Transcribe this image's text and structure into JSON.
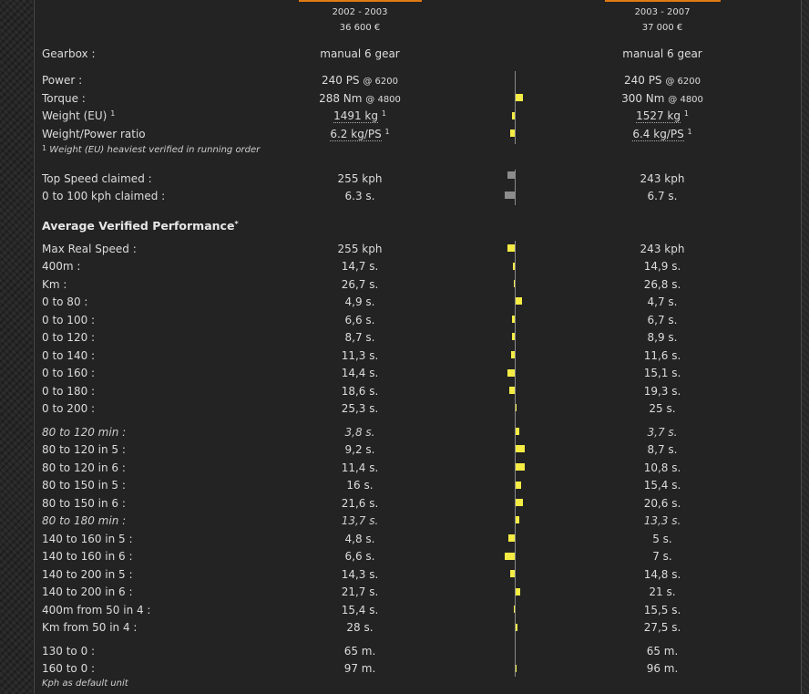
{
  "header": {
    "car1": {
      "years": "2002 - 2003",
      "price": "36 600 €"
    },
    "car2": {
      "years": "2003 - 2007",
      "price": "37 000 €"
    }
  },
  "colors": {
    "accent": "#e07a12",
    "bar_positive": "#f5ec45",
    "bar_neutral": "#8c8c8c"
  },
  "specs": {
    "gearbox": {
      "label": "Gearbox :",
      "car1": "manual 6 gear",
      "car2": "manual 6 gear"
    },
    "power": {
      "label": "Power :",
      "car1": "240 PS",
      "car1_rpm": "@ 6200",
      "car2": "240 PS",
      "car2_rpm": "@ 6200"
    },
    "torque": {
      "label": "Torque :",
      "car1": "288 Nm",
      "car1_rpm": "@ 4800",
      "car2": "300 Nm",
      "car2_rpm": "@ 4800"
    },
    "weight": {
      "label": "Weight (EU)",
      "note_mark": "1",
      "car1": "1491 kg",
      "car2": "1527 kg"
    },
    "ratio": {
      "label": "Weight/Power ratio",
      "car1": "6.2 kg/PS",
      "car2": "6.4 kg/PS"
    },
    "footnote_mark": "1",
    "footnote": "Weight (EU) heaviest verified in running order"
  },
  "claimed": {
    "top_speed": {
      "label": "Top Speed claimed :",
      "car1": "255 kph",
      "car2": "243 kph"
    },
    "accel": {
      "label": "0 to 100 kph claimed :",
      "car1": "6.3 s.",
      "car2": "6.7 s."
    }
  },
  "performance": {
    "title": "Average Verified Performance",
    "title_mark": "*",
    "rows": [
      {
        "label": "Max Real Speed :",
        "car1": "255 kph",
        "car2": "243 kph"
      },
      {
        "label": "400m :",
        "car1": "14,7 s.",
        "car2": "14,9 s."
      },
      {
        "label": "Km :",
        "car1": "26,7 s.",
        "car2": "26,8 s."
      },
      {
        "label": "0 to 80 :",
        "car1": "4,9 s.",
        "car2": "4,7 s."
      },
      {
        "label": "0 to 100 :",
        "car1": "6,6 s.",
        "car2": "6,7 s."
      },
      {
        "label": "0 to 120 :",
        "car1": "8,7 s.",
        "car2": "8,9 s."
      },
      {
        "label": "0 to 140 :",
        "car1": "11,3 s.",
        "car2": "11,6 s."
      },
      {
        "label": "0 to 160 :",
        "car1": "14,4 s.",
        "car2": "15,1 s."
      },
      {
        "label": "0 to 180 :",
        "car1": "18,6 s.",
        "car2": "19,3 s."
      },
      {
        "label": "0 to 200 :",
        "car1": "25,3 s.",
        "car2": "25 s."
      },
      {
        "label": "80 to 120 min :",
        "car1": "3,8 s.",
        "car2": "3,7 s."
      },
      {
        "label": "80 to 120 in 5 :",
        "car1": "9,2 s.",
        "car2": "8,7 s."
      },
      {
        "label": "80 to 120 in 6 :",
        "car1": "11,4 s.",
        "car2": "10,8 s."
      },
      {
        "label": "80 to 150 in 5 :",
        "car1": "16 s.",
        "car2": "15,4 s."
      },
      {
        "label": "80 to 150 in 6 :",
        "car1": "21,6 s.",
        "car2": "20,6 s."
      },
      {
        "label": "80 to 180 min :",
        "car1": "13,7 s.",
        "car2": "13,3 s."
      },
      {
        "label": "140 to 160 in 5 :",
        "car1": "4,8 s.",
        "car2": "5 s."
      },
      {
        "label": "140 to 160 in 6 :",
        "car1": "6,6 s.",
        "car2": "7 s."
      },
      {
        "label": "140 to 200 in 5 :",
        "car1": "14,3 s.",
        "car2": "14,8 s."
      },
      {
        "label": "140 to 200 in 6 :",
        "car1": "21,7 s.",
        "car2": "21 s."
      },
      {
        "label": "400m from 50 in 4 :",
        "car1": "15,4 s.",
        "car2": "15,5 s."
      },
      {
        "label": "Km from 50 in 4 :",
        "car1": "28 s.",
        "car2": "27,5 s."
      }
    ]
  },
  "braking": {
    "rows": [
      {
        "label": "130 to 0 :",
        "car1": "65 m.",
        "car2": "65 m."
      },
      {
        "label": "160 to 0 :",
        "car1": "97 m.",
        "car2": "96 m."
      }
    ],
    "unit_note": "Kph as default unit"
  }
}
